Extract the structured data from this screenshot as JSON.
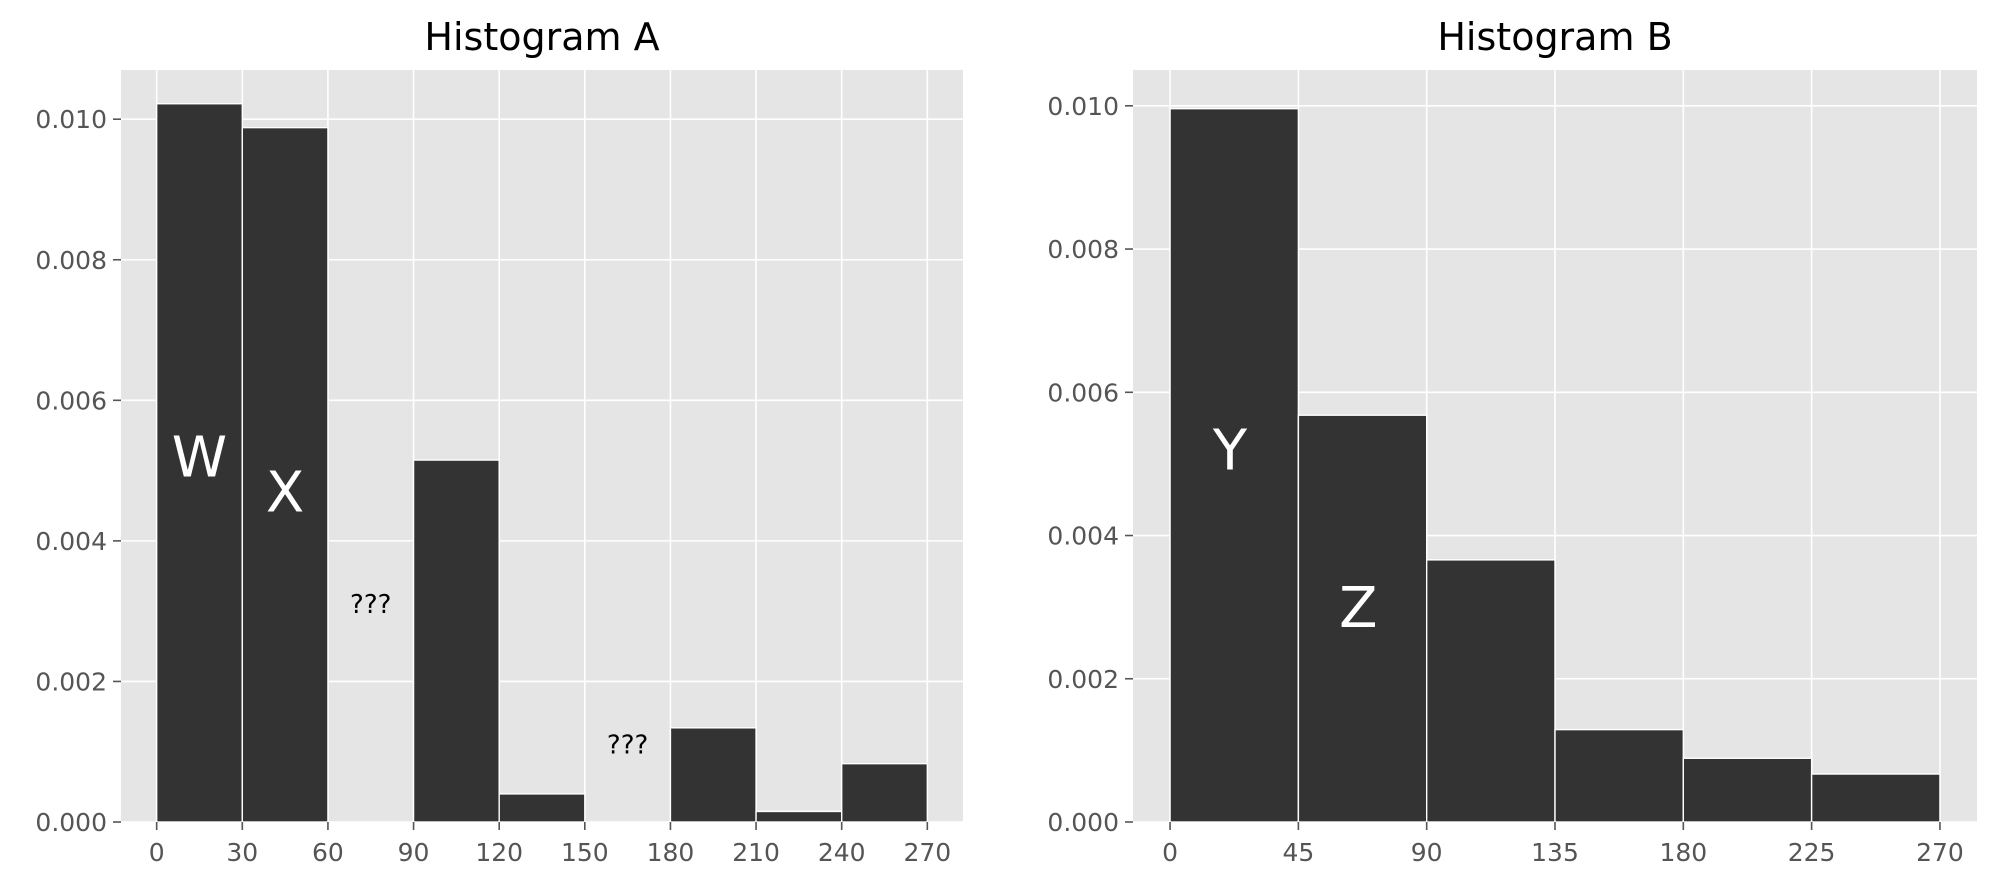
{
  "colors": {
    "panel_bg": "#e5e5e5",
    "grid": "#ffffff",
    "bar": "#333333",
    "bar_edge": "#ffffff",
    "tick_text": "#555555",
    "tick_mark": "#555555"
  },
  "chart_data": [
    {
      "type": "bar",
      "title": "Histogram A",
      "xlabel": "",
      "ylabel": "",
      "bin_edges": [
        0,
        30,
        60,
        90,
        120,
        150,
        180,
        210,
        240,
        270
      ],
      "values": [
        0.01022,
        0.00988,
        0.0,
        0.00515,
        0.0004,
        0.0,
        0.00134,
        0.00015,
        0.00083
      ],
      "xlim": [
        -12.5,
        282.5
      ],
      "ylim": [
        0,
        0.0107
      ],
      "xticks": [
        0,
        30,
        60,
        90,
        120,
        150,
        180,
        210,
        240,
        270
      ],
      "yticks": [
        0.0,
        0.002,
        0.004,
        0.006,
        0.008,
        0.01
      ],
      "ytick_labels": [
        "0.000",
        "0.002",
        "0.004",
        "0.006",
        "0.008",
        "0.010"
      ],
      "grid": true,
      "annotations": [
        {
          "text": "W",
          "x": 15,
          "y": 0.0052,
          "style": "big"
        },
        {
          "text": "X",
          "x": 45,
          "y": 0.0047,
          "style": "big"
        },
        {
          "text": "???",
          "x": 75,
          "y": 0.0031,
          "style": "small"
        },
        {
          "text": "???",
          "x": 165,
          "y": 0.0011,
          "style": "small"
        }
      ]
    },
    {
      "type": "bar",
      "title": "Histogram B",
      "xlabel": "",
      "ylabel": "",
      "bin_edges": [
        0,
        45,
        90,
        135,
        180,
        225,
        270
      ],
      "values": [
        0.00996,
        0.00568,
        0.00366,
        0.00129,
        0.00089,
        0.00067
      ],
      "xlim": [
        -13,
        283
      ],
      "ylim": [
        0,
        0.0105
      ],
      "xticks": [
        0,
        45,
        90,
        135,
        180,
        225,
        270
      ],
      "yticks": [
        0.0,
        0.002,
        0.004,
        0.006,
        0.008,
        0.01
      ],
      "ytick_labels": [
        "0.000",
        "0.002",
        "0.004",
        "0.006",
        "0.008",
        "0.010"
      ],
      "grid": true,
      "annotations": [
        {
          "text": "Y",
          "x": 21,
          "y": 0.0052,
          "style": "big"
        },
        {
          "text": "Z",
          "x": 66,
          "y": 0.003,
          "style": "big"
        }
      ]
    }
  ]
}
